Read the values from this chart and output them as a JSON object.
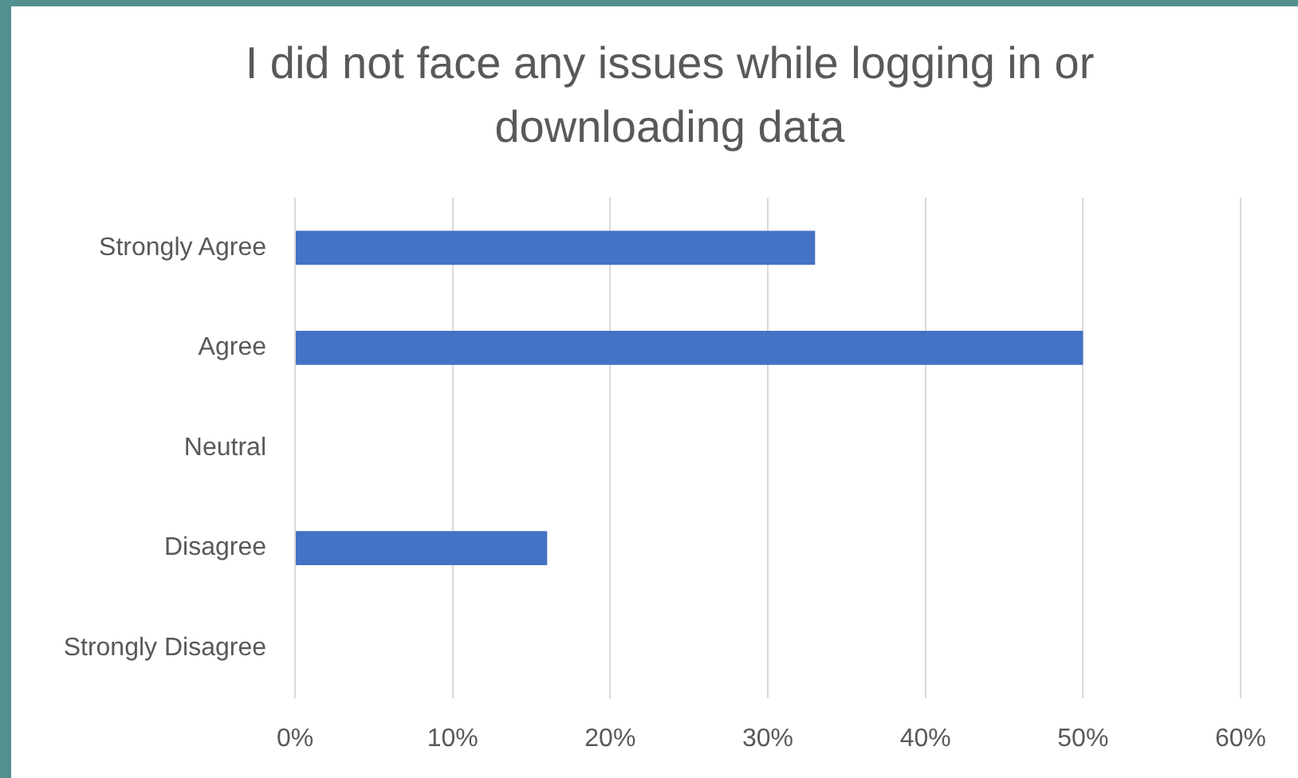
{
  "chart_data": {
    "type": "bar",
    "orientation": "horizontal",
    "title": "I did not face any issues while logging in or downloading data",
    "categories": [
      "Strongly Agree",
      "Agree",
      "Neutral",
      "Disagree",
      "Strongly Disagree"
    ],
    "values": [
      33,
      50,
      0,
      16,
      0
    ],
    "color": "#4472c4",
    "xlim": [
      0,
      60
    ],
    "xticks": [
      {
        "value": 0,
        "label": "0%"
      },
      {
        "value": 10,
        "label": "10%"
      },
      {
        "value": 20,
        "label": "20%"
      },
      {
        "value": 30,
        "label": "30%"
      },
      {
        "value": 40,
        "label": "40%"
      },
      {
        "value": 50,
        "label": "50%"
      },
      {
        "value": 60,
        "label": "60%"
      }
    ],
    "grid": "x",
    "legend": false
  }
}
